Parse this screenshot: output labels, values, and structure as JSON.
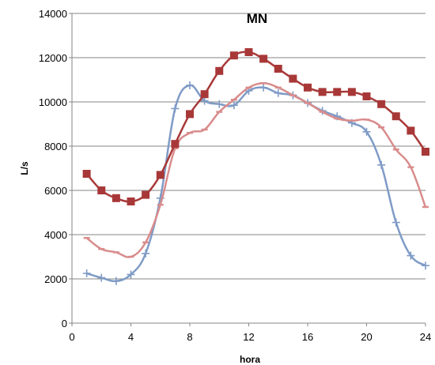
{
  "chart_data": {
    "type": "line",
    "title": "MN",
    "xlabel": "hora",
    "ylabel": "L/s",
    "xlim": [
      0,
      24
    ],
    "ylim": [
      0,
      14000
    ],
    "x_ticks": [
      "0",
      "4",
      "8",
      "12",
      "16",
      "20",
      "24"
    ],
    "y_ticks": [
      "0",
      "2000",
      "4000",
      "6000",
      "8000",
      "10000",
      "12000",
      "14000"
    ],
    "grid": "horizontal",
    "legend": "none",
    "series": [
      {
        "color": "#a83838",
        "marker": "square",
        "x": [
          1,
          2,
          3,
          4,
          5,
          6,
          7,
          8,
          9,
          10,
          11,
          12,
          13,
          14,
          15,
          16,
          17,
          18,
          19,
          20,
          21,
          22,
          23,
          24
        ],
        "values": [
          6750,
          6000,
          5650,
          5500,
          5800,
          6700,
          8100,
          9450,
          10350,
          11400,
          12100,
          12250,
          11950,
          11500,
          11050,
          10650,
          10450,
          10450,
          10450,
          10250,
          9900,
          9350,
          8700,
          7750
        ]
      },
      {
        "color": "#d98c8c",
        "marker": "dash",
        "x": [
          1,
          2,
          3,
          4,
          5,
          6,
          7,
          8,
          9,
          10,
          11,
          12,
          13,
          14,
          15,
          16,
          17,
          18,
          19,
          20,
          21,
          22,
          23,
          24
        ],
        "values": [
          3850,
          3350,
          3200,
          3000,
          3650,
          5350,
          7900,
          8600,
          8750,
          9550,
          10100,
          10650,
          10850,
          10650,
          10300,
          9950,
          9550,
          9250,
          9150,
          9200,
          8850,
          7850,
          7050,
          5250
        ]
      },
      {
        "color": "#7f9bc6",
        "marker": "plus",
        "x": [
          1,
          2,
          3,
          4,
          5,
          6,
          7,
          8,
          9,
          10,
          11,
          12,
          13,
          14,
          15,
          16,
          17,
          18,
          19,
          20,
          21,
          22,
          23,
          24
        ],
        "values": [
          2250,
          2050,
          1900,
          2200,
          3150,
          5650,
          9700,
          10750,
          10050,
          9900,
          9850,
          10500,
          10650,
          10400,
          10300,
          9950,
          9600,
          9350,
          9050,
          8650,
          7150,
          4550,
          3050,
          2600
        ]
      }
    ]
  }
}
